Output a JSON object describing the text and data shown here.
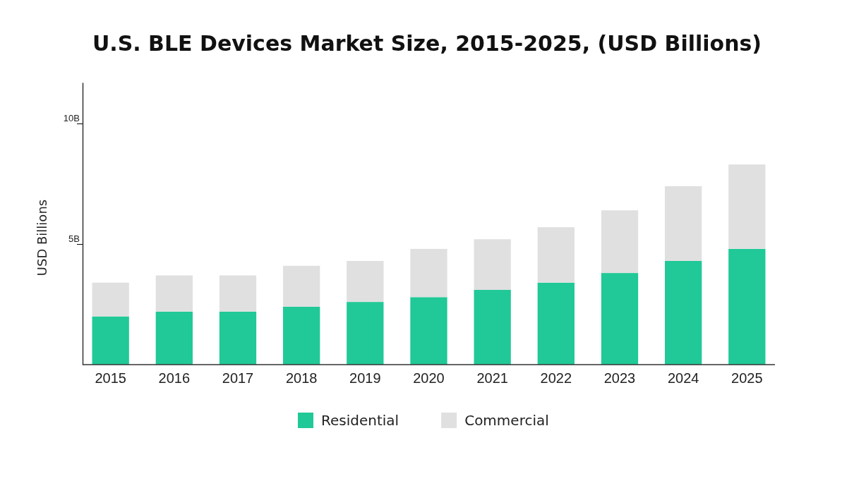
{
  "chart_data": {
    "type": "bar",
    "title": "U.S. BLE Devices Market Size, 2015-2025, (USD Billions)",
    "ylabel": "USD Billions",
    "categories": [
      "2015",
      "2016",
      "2017",
      "2018",
      "2019",
      "2020",
      "2021",
      "2022",
      "2023",
      "2024",
      "2025"
    ],
    "series": [
      {
        "name": "Residential",
        "color": "#20c997",
        "values": [
          2.0,
          2.2,
          2.2,
          2.4,
          2.6,
          2.8,
          3.1,
          3.4,
          3.8,
          4.3,
          4.8
        ]
      },
      {
        "name": "Commercial",
        "color": "#e0e0e0",
        "values": [
          1.4,
          1.5,
          1.5,
          1.7,
          1.7,
          2.0,
          2.1,
          2.3,
          2.6,
          3.1,
          3.5
        ]
      }
    ],
    "stacked": true,
    "ylim": [
      0,
      11.7
    ],
    "yticks": [
      {
        "value": 5,
        "label": "5B"
      },
      {
        "value": 10,
        "label": "10B"
      }
    ],
    "legend": "bottom",
    "grid": false
  }
}
